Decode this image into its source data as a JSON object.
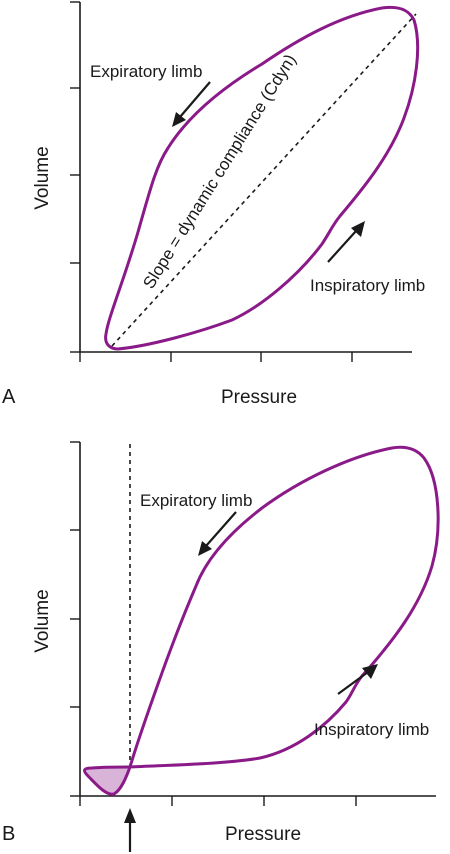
{
  "panel_a": {
    "letter": "A",
    "y_axis_label": "Volume",
    "x_axis_label": "Pressure",
    "expiratory_label": "Expiratory limb",
    "inspiratory_label": "Inspiratory limb",
    "slope_label": "Slope = dynamic compliance (Cdyn)"
  },
  "panel_b": {
    "letter": "B",
    "y_axis_label": "Volume",
    "x_axis_label": "Pressure",
    "expiratory_label": "Expiratory limb",
    "inspiratory_label": "Inspiratory limb"
  },
  "colors": {
    "loop": "#8b1a89",
    "shaded_region": "#d9b3d8",
    "axis": "#1a1a1a"
  }
}
